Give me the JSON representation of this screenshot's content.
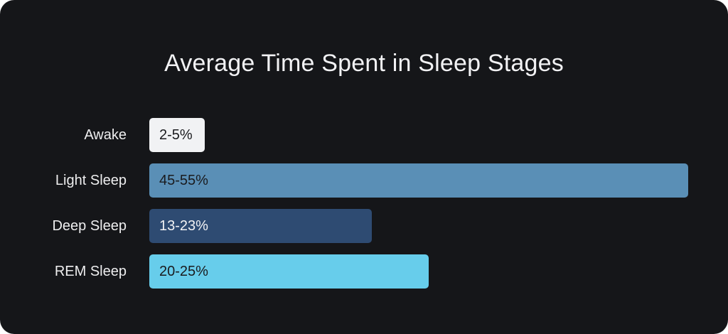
{
  "chart_data": {
    "type": "bar",
    "orientation": "horizontal",
    "title": "Average Time Spent in Sleep Stages",
    "categories": [
      "Awake",
      "Light Sleep",
      "Deep Sleep",
      "REM Sleep"
    ],
    "values": [
      {
        "low": 2,
        "high": 5,
        "label": "2-5%"
      },
      {
        "low": 45,
        "high": 55,
        "label": "45-55%"
      },
      {
        "low": 13,
        "high": 23,
        "label": "13-23%"
      },
      {
        "low": 20,
        "high": 25,
        "label": "20-25%"
      }
    ],
    "colors": [
      "#f1f2f4",
      "#5a8fb6",
      "#2e4b72",
      "#67cdeb"
    ],
    "label_colors": [
      "#1a1b1e",
      "#1a1b1e",
      "#f1f2f4",
      "#1a1b1e"
    ],
    "background": "#151619",
    "grid": false,
    "legend": "none"
  }
}
